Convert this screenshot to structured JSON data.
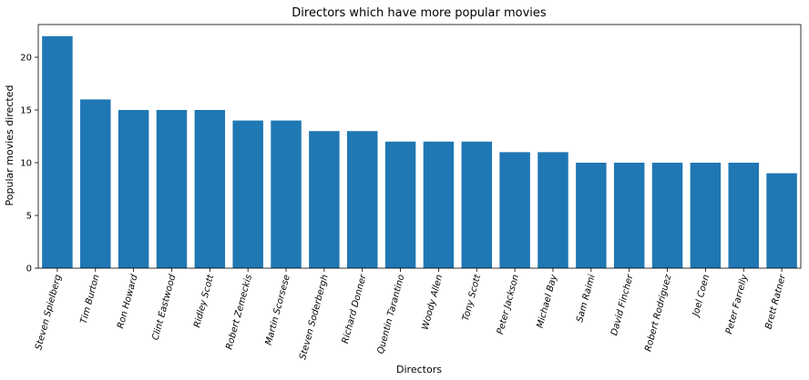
{
  "chart_data": {
    "type": "bar",
    "title": "Directors which have more popular movies",
    "xlabel": "Directors",
    "ylabel": "Popular movies directed",
    "ylim": [
      0,
      23.1
    ],
    "yticks": [
      0,
      5,
      10,
      15,
      20
    ],
    "grid": false,
    "categories": [
      "Steven Spielberg",
      "Tim Burton",
      "Ron Howard",
      "Clint Eastwood",
      "Ridley Scott",
      "Robert Zemeckis",
      "Martin Scorsese",
      "Steven Soderbergh",
      "Richard Donner",
      "Quentin Tarantino",
      "Woody Allen",
      "Tony Scott",
      "Peter Jackson",
      "Michael Bay",
      "Sam Raimi",
      "David Fincher",
      "Robert Rodriguez",
      "Joel Coen",
      "Peter Farrelly",
      "Brett Ratner"
    ],
    "values": [
      22,
      16,
      15,
      15,
      15,
      14,
      14,
      13,
      13,
      12,
      12,
      12,
      11,
      11,
      10,
      10,
      10,
      10,
      10,
      9
    ],
    "bar_color": "#1f77b4",
    "tick_label_rotation_deg": -75
  }
}
